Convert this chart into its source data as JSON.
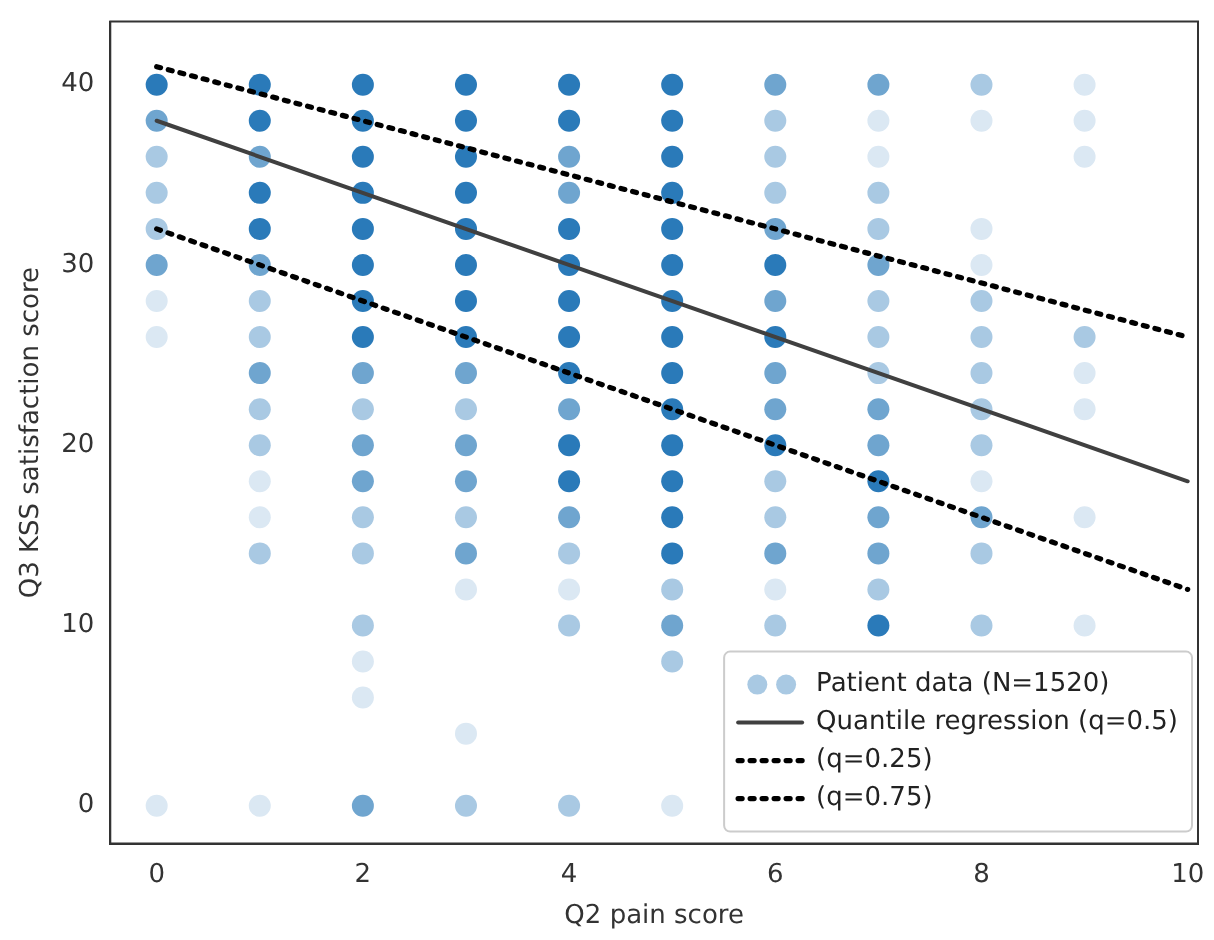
{
  "chart_data": {
    "type": "scatter",
    "xlabel": "Q2 pain score",
    "ylabel": "Q3 KSS satisfaction score",
    "xlim": [
      -0.45,
      10.1
    ],
    "ylim": [
      -2.1,
      43.5
    ],
    "xticks": [
      0,
      2,
      4,
      6,
      8,
      10
    ],
    "yticks": [
      0,
      10,
      20,
      30,
      40
    ],
    "grid": false,
    "legend": "bottom right",
    "series": [
      {
        "name": "Patient data (N=1520)",
        "marker": "circle",
        "color": "#a9c9e3",
        "x": [
          0,
          0,
          0,
          0,
          0,
          0,
          0,
          0,
          0,
          1,
          1,
          1,
          1,
          1,
          1,
          1,
          1,
          1,
          1,
          1,
          1,
          1,
          1,
          1,
          2,
          2,
          2,
          2,
          2,
          2,
          2,
          2,
          2,
          2,
          2,
          2,
          2,
          2,
          2,
          2,
          2,
          2,
          3,
          3,
          3,
          3,
          3,
          3,
          3,
          3,
          3,
          3,
          3,
          3,
          3,
          3,
          3,
          3,
          3,
          4,
          4,
          4,
          4,
          4,
          4,
          4,
          4,
          4,
          4,
          4,
          4,
          4,
          4,
          4,
          4,
          4,
          5,
          5,
          5,
          5,
          5,
          5,
          5,
          5,
          5,
          5,
          5,
          5,
          5,
          5,
          5,
          5,
          5,
          5,
          6,
          6,
          6,
          6,
          6,
          6,
          6,
          6,
          6,
          6,
          6,
          6,
          6,
          6,
          6,
          6,
          7,
          7,
          7,
          7,
          7,
          7,
          7,
          7,
          7,
          7,
          7,
          7,
          7,
          7,
          7,
          7,
          8,
          8,
          8,
          8,
          8,
          8,
          8,
          8,
          8,
          8,
          8,
          8,
          8,
          9,
          9,
          9,
          9,
          9,
          9,
          9,
          9
        ],
        "values": [
          40,
          38,
          36,
          34,
          32,
          30,
          28,
          26,
          0,
          40,
          38,
          36,
          34,
          32,
          30,
          28,
          26,
          24,
          22,
          20,
          18,
          16,
          14,
          0,
          40,
          38,
          36,
          34,
          32,
          30,
          28,
          26,
          24,
          22,
          20,
          18,
          16,
          14,
          10,
          8,
          6,
          0,
          40,
          38,
          36,
          34,
          32,
          30,
          28,
          26,
          24,
          22,
          20,
          18,
          16,
          14,
          12,
          4,
          0,
          40,
          38,
          36,
          34,
          32,
          30,
          28,
          26,
          24,
          22,
          20,
          18,
          16,
          14,
          12,
          10,
          0,
          40,
          38,
          36,
          34,
          32,
          30,
          28,
          26,
          24,
          22,
          20,
          18,
          16,
          14,
          12,
          10,
          8,
          0,
          40,
          38,
          36,
          34,
          32,
          30,
          28,
          26,
          24,
          22,
          20,
          18,
          16,
          14,
          12,
          10,
          40,
          38,
          36,
          34,
          32,
          30,
          28,
          26,
          24,
          22,
          20,
          18,
          16,
          14,
          12,
          10,
          40,
          38,
          32,
          30,
          28,
          26,
          24,
          22,
          20,
          18,
          16,
          14,
          10,
          40,
          38,
          36,
          26,
          24,
          22,
          16,
          10
        ],
        "colors": [
          "#2a7ab9",
          "#6fa5cf",
          "#a9c9e3",
          "#a9c9e3",
          "#a9c9e3",
          "#6fa5cf",
          "#dbe8f3",
          "#dbe8f3",
          "#dbe8f3",
          "#2a7ab9",
          "#2a7ab9",
          "#6fa5cf",
          "#2a7ab9",
          "#2a7ab9",
          "#6fa5cf",
          "#a9c9e3",
          "#a9c9e3",
          "#6fa5cf",
          "#a9c9e3",
          "#a9c9e3",
          "#dbe8f3",
          "#dbe8f3",
          "#a9c9e3",
          "#dbe8f3",
          "#2a7ab9",
          "#2a7ab9",
          "#2a7ab9",
          "#2a7ab9",
          "#2a7ab9",
          "#2a7ab9",
          "#2a7ab9",
          "#2a7ab9",
          "#6fa5cf",
          "#a9c9e3",
          "#6fa5cf",
          "#6fa5cf",
          "#a9c9e3",
          "#a9c9e3",
          "#a9c9e3",
          "#dbe8f3",
          "#dbe8f3",
          "#6fa5cf",
          "#2a7ab9",
          "#2a7ab9",
          "#2a7ab9",
          "#2a7ab9",
          "#2a7ab9",
          "#2a7ab9",
          "#2a7ab9",
          "#2a7ab9",
          "#6fa5cf",
          "#a9c9e3",
          "#6fa5cf",
          "#6fa5cf",
          "#a9c9e3",
          "#6fa5cf",
          "#dbe8f3",
          "#dbe8f3",
          "#a9c9e3",
          "#2a7ab9",
          "#2a7ab9",
          "#6fa5cf",
          "#6fa5cf",
          "#2a7ab9",
          "#2a7ab9",
          "#2a7ab9",
          "#2a7ab9",
          "#2a7ab9",
          "#6fa5cf",
          "#2a7ab9",
          "#2a7ab9",
          "#6fa5cf",
          "#a9c9e3",
          "#dbe8f3",
          "#a9c9e3",
          "#a9c9e3",
          "#2a7ab9",
          "#2a7ab9",
          "#2a7ab9",
          "#2a7ab9",
          "#2a7ab9",
          "#2a7ab9",
          "#2a7ab9",
          "#2a7ab9",
          "#2a7ab9",
          "#2a7ab9",
          "#2a7ab9",
          "#2a7ab9",
          "#2a7ab9",
          "#2a7ab9",
          "#a9c9e3",
          "#6fa5cf",
          "#a9c9e3",
          "#dbe8f3",
          "#6fa5cf",
          "#a9c9e3",
          "#a9c9e3",
          "#a9c9e3",
          "#6fa5cf",
          "#2a7ab9",
          "#6fa5cf",
          "#2a7ab9",
          "#6fa5cf",
          "#6fa5cf",
          "#2a7ab9",
          "#a9c9e3",
          "#a9c9e3",
          "#6fa5cf",
          "#dbe8f3",
          "#a9c9e3",
          "#6fa5cf",
          "#dbe8f3",
          "#dbe8f3",
          "#a9c9e3",
          "#a9c9e3",
          "#6fa5cf",
          "#a9c9e3",
          "#a9c9e3",
          "#a9c9e3",
          "#6fa5cf",
          "#6fa5cf",
          "#2a7ab9",
          "#6fa5cf",
          "#6fa5cf",
          "#a9c9e3",
          "#2a7ab9",
          "#a9c9e3",
          "#dbe8f3",
          "#dbe8f3",
          "#dbe8f3",
          "#a9c9e3",
          "#a9c9e3",
          "#a9c9e3",
          "#a9c9e3",
          "#a9c9e3",
          "#dbe8f3",
          "#6fa5cf",
          "#a9c9e3",
          "#a9c9e3",
          "#dbe8f3",
          "#dbe8f3",
          "#dbe8f3",
          "#a9c9e3",
          "#dbe8f3",
          "#dbe8f3",
          "#dbe8f3",
          "#dbe8f3"
        ]
      },
      {
        "name": "Quantile regression (q=0.5)",
        "type": "line",
        "marker": "none",
        "color": "#404040",
        "line_style": "solid",
        "x": [
          0,
          10
        ],
        "values": [
          38,
          18
        ]
      },
      {
        "name": "(q=0.25)",
        "type": "line",
        "marker": "none",
        "color": "#000000",
        "line_style": "dotted",
        "x": [
          0,
          10
        ],
        "values": [
          32,
          12
        ]
      },
      {
        "name": "(q=0.75)",
        "type": "line",
        "marker": "none",
        "color": "#000000",
        "line_style": "dotted",
        "x": [
          0,
          10
        ],
        "values": [
          41,
          26
        ]
      }
    ]
  }
}
